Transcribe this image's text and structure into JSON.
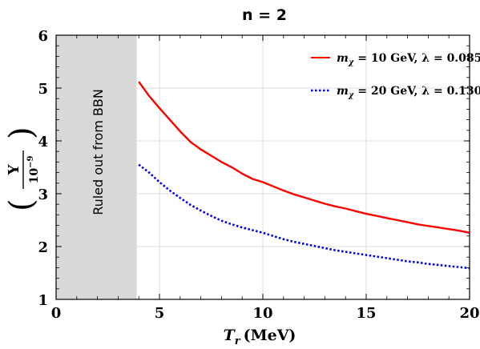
{
  "chart_data": {
    "type": "line",
    "title": "n = 2",
    "xlabel": "T",
    "xlabel_sub": "r",
    "xlabel_unit": "(MeV)",
    "ylabel_num": "Y",
    "ylabel_den_base": "10",
    "ylabel_den_exp": "−9",
    "xlim": [
      0,
      20
    ],
    "ylim": [
      1,
      6
    ],
    "xticks": [
      0,
      5,
      10,
      15,
      20
    ],
    "yticks": [
      1,
      2,
      3,
      4,
      5,
      6
    ],
    "grid": true,
    "legend_position": "top-right",
    "shaded_region": {
      "x_range": [
        0,
        3.9
      ],
      "label": "Ruled out from BBN",
      "color": "#d8d8d8"
    },
    "series": [
      {
        "name": "m_χ = 10 GeV, λ = 0.085",
        "legend_main": "m",
        "legend_sub": "χ",
        "legend_text": " = 10 GeV, λ = 0.085",
        "color": "#ff0000",
        "style": "solid",
        "x": [
          4.0,
          4.5,
          5.0,
          5.5,
          6.0,
          6.5,
          7.0,
          7.5,
          8.0,
          8.5,
          9.0,
          9.5,
          10.0,
          10.5,
          11.0,
          11.5,
          12.0,
          12.5,
          13.0,
          13.5,
          14.0,
          14.5,
          15.0,
          15.5,
          16.0,
          16.5,
          17.0,
          17.5,
          18.0,
          18.5,
          19.0,
          19.5,
          20.0
        ],
        "y": [
          5.12,
          4.85,
          4.62,
          4.4,
          4.18,
          3.98,
          3.84,
          3.72,
          3.6,
          3.5,
          3.38,
          3.28,
          3.22,
          3.14,
          3.06,
          2.99,
          2.93,
          2.87,
          2.81,
          2.76,
          2.72,
          2.67,
          2.62,
          2.58,
          2.54,
          2.5,
          2.46,
          2.42,
          2.39,
          2.36,
          2.33,
          2.3,
          2.26
        ]
      },
      {
        "name": "m_χ = 20 GeV, λ = 0.130",
        "legend_main": "m",
        "legend_sub": "χ",
        "legend_text": " = 20 GeV, λ = 0.130",
        "color": "#0000e0",
        "style": "dotted",
        "x": [
          4.0,
          4.5,
          5.0,
          5.5,
          6.0,
          6.5,
          7.0,
          7.5,
          8.0,
          8.5,
          9.0,
          9.5,
          10.0,
          10.5,
          11.0,
          11.5,
          12.0,
          12.5,
          13.0,
          13.5,
          14.0,
          14.5,
          15.0,
          15.5,
          16.0,
          16.5,
          17.0,
          17.5,
          18.0,
          18.5,
          19.0,
          19.5,
          20.0
        ],
        "y": [
          3.55,
          3.4,
          3.22,
          3.06,
          2.92,
          2.79,
          2.68,
          2.58,
          2.49,
          2.42,
          2.36,
          2.31,
          2.26,
          2.2,
          2.14,
          2.09,
          2.05,
          2.01,
          1.97,
          1.93,
          1.9,
          1.87,
          1.84,
          1.81,
          1.78,
          1.75,
          1.72,
          1.7,
          1.67,
          1.65,
          1.63,
          1.61,
          1.59
        ]
      }
    ]
  }
}
